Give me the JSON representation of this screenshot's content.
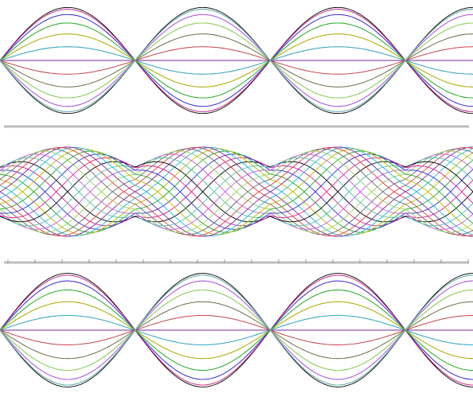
{
  "chart_data": [
    {
      "type": "line",
      "title": "",
      "xlabel": "",
      "ylabel": "",
      "grid": false,
      "legend": "none",
      "x_range": [
        0,
        3.5
      ],
      "ylim": [
        -1.05,
        1.05
      ],
      "envelope_periods": 3.5,
      "envelope_phase": 0.5,
      "envelope_amplitude": 1.0,
      "curve_count": 24,
      "divider_below": "plain"
    },
    {
      "type": "line",
      "title": "",
      "xlabel": "",
      "ylabel": "",
      "grid": false,
      "legend": "none",
      "x_range": [
        0,
        3.5
      ],
      "ylim": [
        -1.05,
        1.05
      ],
      "envelope_periods": 3.5,
      "envelope_phase": 0.5,
      "envelope_amplitude": 1.0,
      "envelope_min": 0.55,
      "curve_count": 24,
      "divider_below": "ticked"
    },
    {
      "type": "line",
      "title": "",
      "xlabel": "",
      "ylabel": "",
      "grid": false,
      "legend": "none",
      "x_range": [
        0,
        3.5
      ],
      "ylim": [
        -1.05,
        1.05
      ],
      "envelope_periods": 3.5,
      "envelope_phase": 0.5,
      "envelope_amplitude": 1.0,
      "curve_count": 24
    }
  ],
  "colors": {
    "palette": [
      "#000000",
      "#e0208f",
      "#2f2fd0",
      "#21a82a",
      "#b8b800",
      "#20b8d8",
      "#7a2a9a",
      "#e04040",
      "#6a6a6a",
      "#9bd060",
      "#c060e0",
      "#50c0b0"
    ],
    "divider": "#bdbdbd",
    "background": "#ffffff"
  }
}
